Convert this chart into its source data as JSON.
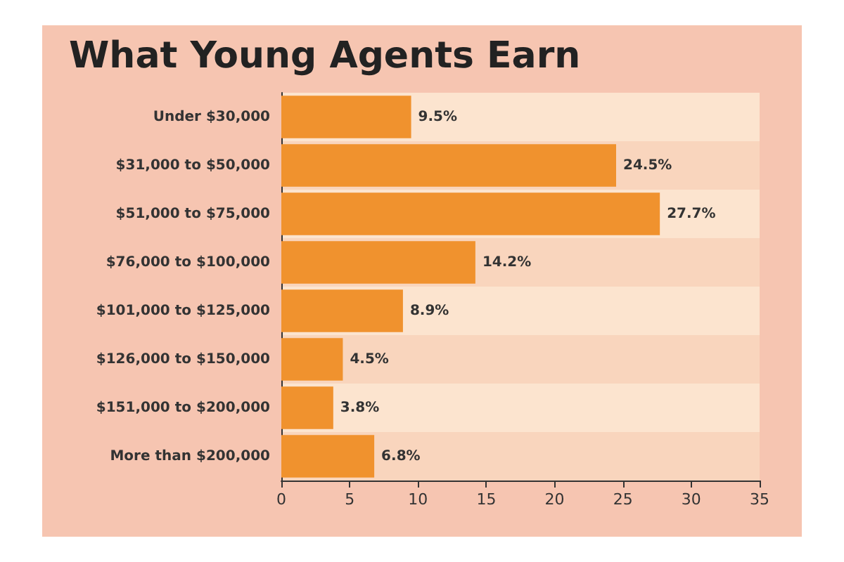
{
  "chart_data": {
    "type": "bar",
    "orientation": "horizontal",
    "title": "What Young Agents Earn",
    "categories": [
      "Under $30,000",
      "$31,000 to $50,000",
      "$51,000 to $75,000",
      "$76,000 to $100,000",
      "$101,000 to $125,000",
      "$126,000 to $150,000",
      "$151,000 to $200,000",
      "More than $200,000"
    ],
    "values": [
      9.5,
      24.5,
      27.7,
      14.2,
      8.9,
      4.5,
      3.8,
      6.8
    ],
    "value_labels": [
      "9.5%",
      "24.5%",
      "27.7%",
      "14.2%",
      "8.9%",
      "4.5%",
      "3.8%",
      "6.8%"
    ],
    "color": "#f0922e",
    "xlim": [
      0,
      35
    ],
    "xticks": [
      0,
      5,
      10,
      15,
      20,
      25,
      30,
      35
    ],
    "grid": false
  }
}
